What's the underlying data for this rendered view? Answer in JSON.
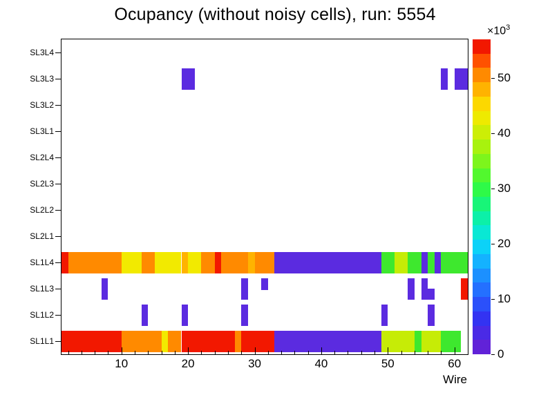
{
  "title": "Ocupancy (without noisy cells), run: 5554",
  "axes": {
    "x_label": "Wire",
    "x_ticks": [
      "10",
      "20",
      "30",
      "40",
      "50",
      "60"
    ],
    "x_tick_values": [
      10,
      20,
      30,
      40,
      50,
      60
    ],
    "x_min": 1,
    "x_max": 62,
    "y_rows_bottom_to_top": [
      "SL1L1",
      "SL1L2",
      "SL1L3",
      "SL1L4",
      "SL2L1",
      "SL2L2",
      "SL2L3",
      "SL2L4",
      "SL3L1",
      "SL3L2",
      "SL3L3",
      "SL3L4"
    ]
  },
  "colorbar": {
    "multiplier_label": "×10",
    "multiplier_exp": "3",
    "tick_labels": [
      "0",
      "10",
      "20",
      "30",
      "40",
      "50"
    ],
    "tick_values": [
      0,
      10,
      20,
      30,
      40,
      50
    ],
    "value_max": 57,
    "band_colors": [
      "#6122d8",
      "#4a2ae6",
      "#3333f2",
      "#2b50fa",
      "#2470ff",
      "#1c90ff",
      "#14b2ff",
      "#0cd2f8",
      "#09e8d4",
      "#0cf0a8",
      "#18f578",
      "#2efa48",
      "#52f82e",
      "#7df51c",
      "#a8f20e",
      "#ccee06",
      "#eeea00",
      "#fcd800",
      "#ffb300",
      "#ff8a00",
      "#ff5100",
      "#f21800"
    ]
  },
  "palette": {
    "red": "#f21800",
    "orange": "#ff8a00",
    "amber": "#ffb300",
    "yellow": "#f2ea00",
    "yellowgreen": "#c6ec06",
    "green": "#3ee82e",
    "purple": "#5b2be0"
  },
  "chart_data": {
    "type": "heatmap",
    "title": "Ocupancy (without noisy cells), run: 5554",
    "xlabel": "Wire",
    "x_range": [
      1,
      61
    ],
    "value_units": "counts ×10³",
    "value_range": [
      0,
      57
    ],
    "rows": [
      "SL1L1",
      "SL1L2",
      "SL1L3",
      "SL1L4",
      "SL2L1",
      "SL2L2",
      "SL2L3",
      "SL2L4",
      "SL3L1",
      "SL3L2",
      "SL3L3",
      "SL3L4"
    ],
    "segments": [
      {
        "row": "SL1L1",
        "from": 1,
        "to": 9,
        "color": "red",
        "value": 55
      },
      {
        "row": "SL1L1",
        "from": 10,
        "to": 15,
        "color": "orange",
        "value": 48
      },
      {
        "row": "SL1L1",
        "from": 16,
        "to": 16,
        "color": "yellow",
        "value": 41
      },
      {
        "row": "SL1L1",
        "from": 17,
        "to": 18,
        "color": "orange",
        "value": 48
      },
      {
        "row": "SL1L1",
        "from": 19,
        "to": 26,
        "color": "red",
        "value": 55
      },
      {
        "row": "SL1L1",
        "from": 27,
        "to": 27,
        "color": "orange",
        "value": 48
      },
      {
        "row": "SL1L1",
        "from": 28,
        "to": 32,
        "color": "red",
        "value": 55
      },
      {
        "row": "SL1L1",
        "from": 33,
        "to": 48,
        "color": "purple",
        "value": 2
      },
      {
        "row": "SL1L1",
        "from": 49,
        "to": 53,
        "color": "yellowgreen",
        "value": 38
      },
      {
        "row": "SL1L1",
        "from": 54,
        "to": 54,
        "color": "green",
        "value": 31
      },
      {
        "row": "SL1L1",
        "from": 55,
        "to": 57,
        "color": "yellowgreen",
        "value": 38
      },
      {
        "row": "SL1L1",
        "from": 58,
        "to": 60,
        "color": "green",
        "value": 31
      },
      {
        "row": "SL1L2",
        "from": 13,
        "to": 13,
        "color": "purple",
        "value": 2
      },
      {
        "row": "SL1L2",
        "from": 19,
        "to": 19,
        "color": "purple",
        "value": 2
      },
      {
        "row": "SL1L2",
        "from": 28,
        "to": 28,
        "color": "purple",
        "value": 2
      },
      {
        "row": "SL1L2",
        "from": 49,
        "to": 49,
        "color": "purple",
        "value": 2
      },
      {
        "row": "SL1L2",
        "from": 56,
        "to": 56,
        "color": "purple",
        "value": 2
      },
      {
        "row": "SL1L3",
        "from": 7,
        "to": 7,
        "color": "purple",
        "value": 2
      },
      {
        "row": "SL1L3",
        "from": 28,
        "to": 28,
        "color": "purple",
        "value": 2
      },
      {
        "row": "SL1L3",
        "from": 31,
        "to": 31,
        "color": "purple",
        "value": 2,
        "h": 0.55,
        "va": "top"
      },
      {
        "row": "SL1L3",
        "from": 53,
        "to": 53,
        "color": "purple",
        "value": 2
      },
      {
        "row": "SL1L3",
        "from": 55,
        "to": 55,
        "color": "purple",
        "value": 2
      },
      {
        "row": "SL1L3",
        "from": 56,
        "to": 56,
        "color": "purple",
        "value": 2,
        "h": 0.5,
        "va": "bottom"
      },
      {
        "row": "SL1L3",
        "from": 61,
        "to": 61,
        "color": "red",
        "value": 55
      },
      {
        "row": "SL1L4",
        "from": 1,
        "to": 1,
        "color": "red",
        "value": 55
      },
      {
        "row": "SL1L4",
        "from": 2,
        "to": 9,
        "color": "orange",
        "value": 48
      },
      {
        "row": "SL1L4",
        "from": 10,
        "to": 12,
        "color": "yellow",
        "value": 41
      },
      {
        "row": "SL1L4",
        "from": 13,
        "to": 14,
        "color": "orange",
        "value": 48
      },
      {
        "row": "SL1L4",
        "from": 15,
        "to": 18,
        "color": "yellow",
        "value": 41
      },
      {
        "row": "SL1L4",
        "from": 19,
        "to": 19,
        "color": "amber",
        "value": 45
      },
      {
        "row": "SL1L4",
        "from": 20,
        "to": 21,
        "color": "yellow",
        "value": 41
      },
      {
        "row": "SL1L4",
        "from": 22,
        "to": 23,
        "color": "orange",
        "value": 48
      },
      {
        "row": "SL1L4",
        "from": 24,
        "to": 24,
        "color": "red",
        "value": 53
      },
      {
        "row": "SL1L4",
        "from": 25,
        "to": 28,
        "color": "orange",
        "value": 48
      },
      {
        "row": "SL1L4",
        "from": 29,
        "to": 29,
        "color": "amber",
        "value": 45
      },
      {
        "row": "SL1L4",
        "from": 30,
        "to": 32,
        "color": "orange",
        "value": 48
      },
      {
        "row": "SL1L4",
        "from": 33,
        "to": 48,
        "color": "purple",
        "value": 2
      },
      {
        "row": "SL1L4",
        "from": 49,
        "to": 50,
        "color": "green",
        "value": 31
      },
      {
        "row": "SL1L4",
        "from": 51,
        "to": 52,
        "color": "yellowgreen",
        "value": 38
      },
      {
        "row": "SL1L4",
        "from": 53,
        "to": 54,
        "color": "green",
        "value": 31
      },
      {
        "row": "SL1L4",
        "from": 55,
        "to": 55,
        "color": "purple",
        "value": 2
      },
      {
        "row": "SL1L4",
        "from": 56,
        "to": 56,
        "color": "green",
        "value": 31
      },
      {
        "row": "SL1L4",
        "from": 57,
        "to": 57,
        "color": "purple",
        "value": 2
      },
      {
        "row": "SL1L4",
        "from": 58,
        "to": 61,
        "color": "green",
        "value": 31
      },
      {
        "row": "SL3L3",
        "from": 19,
        "to": 20,
        "color": "purple",
        "value": 2
      },
      {
        "row": "SL3L3",
        "from": 58,
        "to": 58,
        "color": "purple",
        "value": 2
      },
      {
        "row": "SL3L3",
        "from": 60,
        "to": 61,
        "color": "purple",
        "value": 2
      }
    ]
  }
}
